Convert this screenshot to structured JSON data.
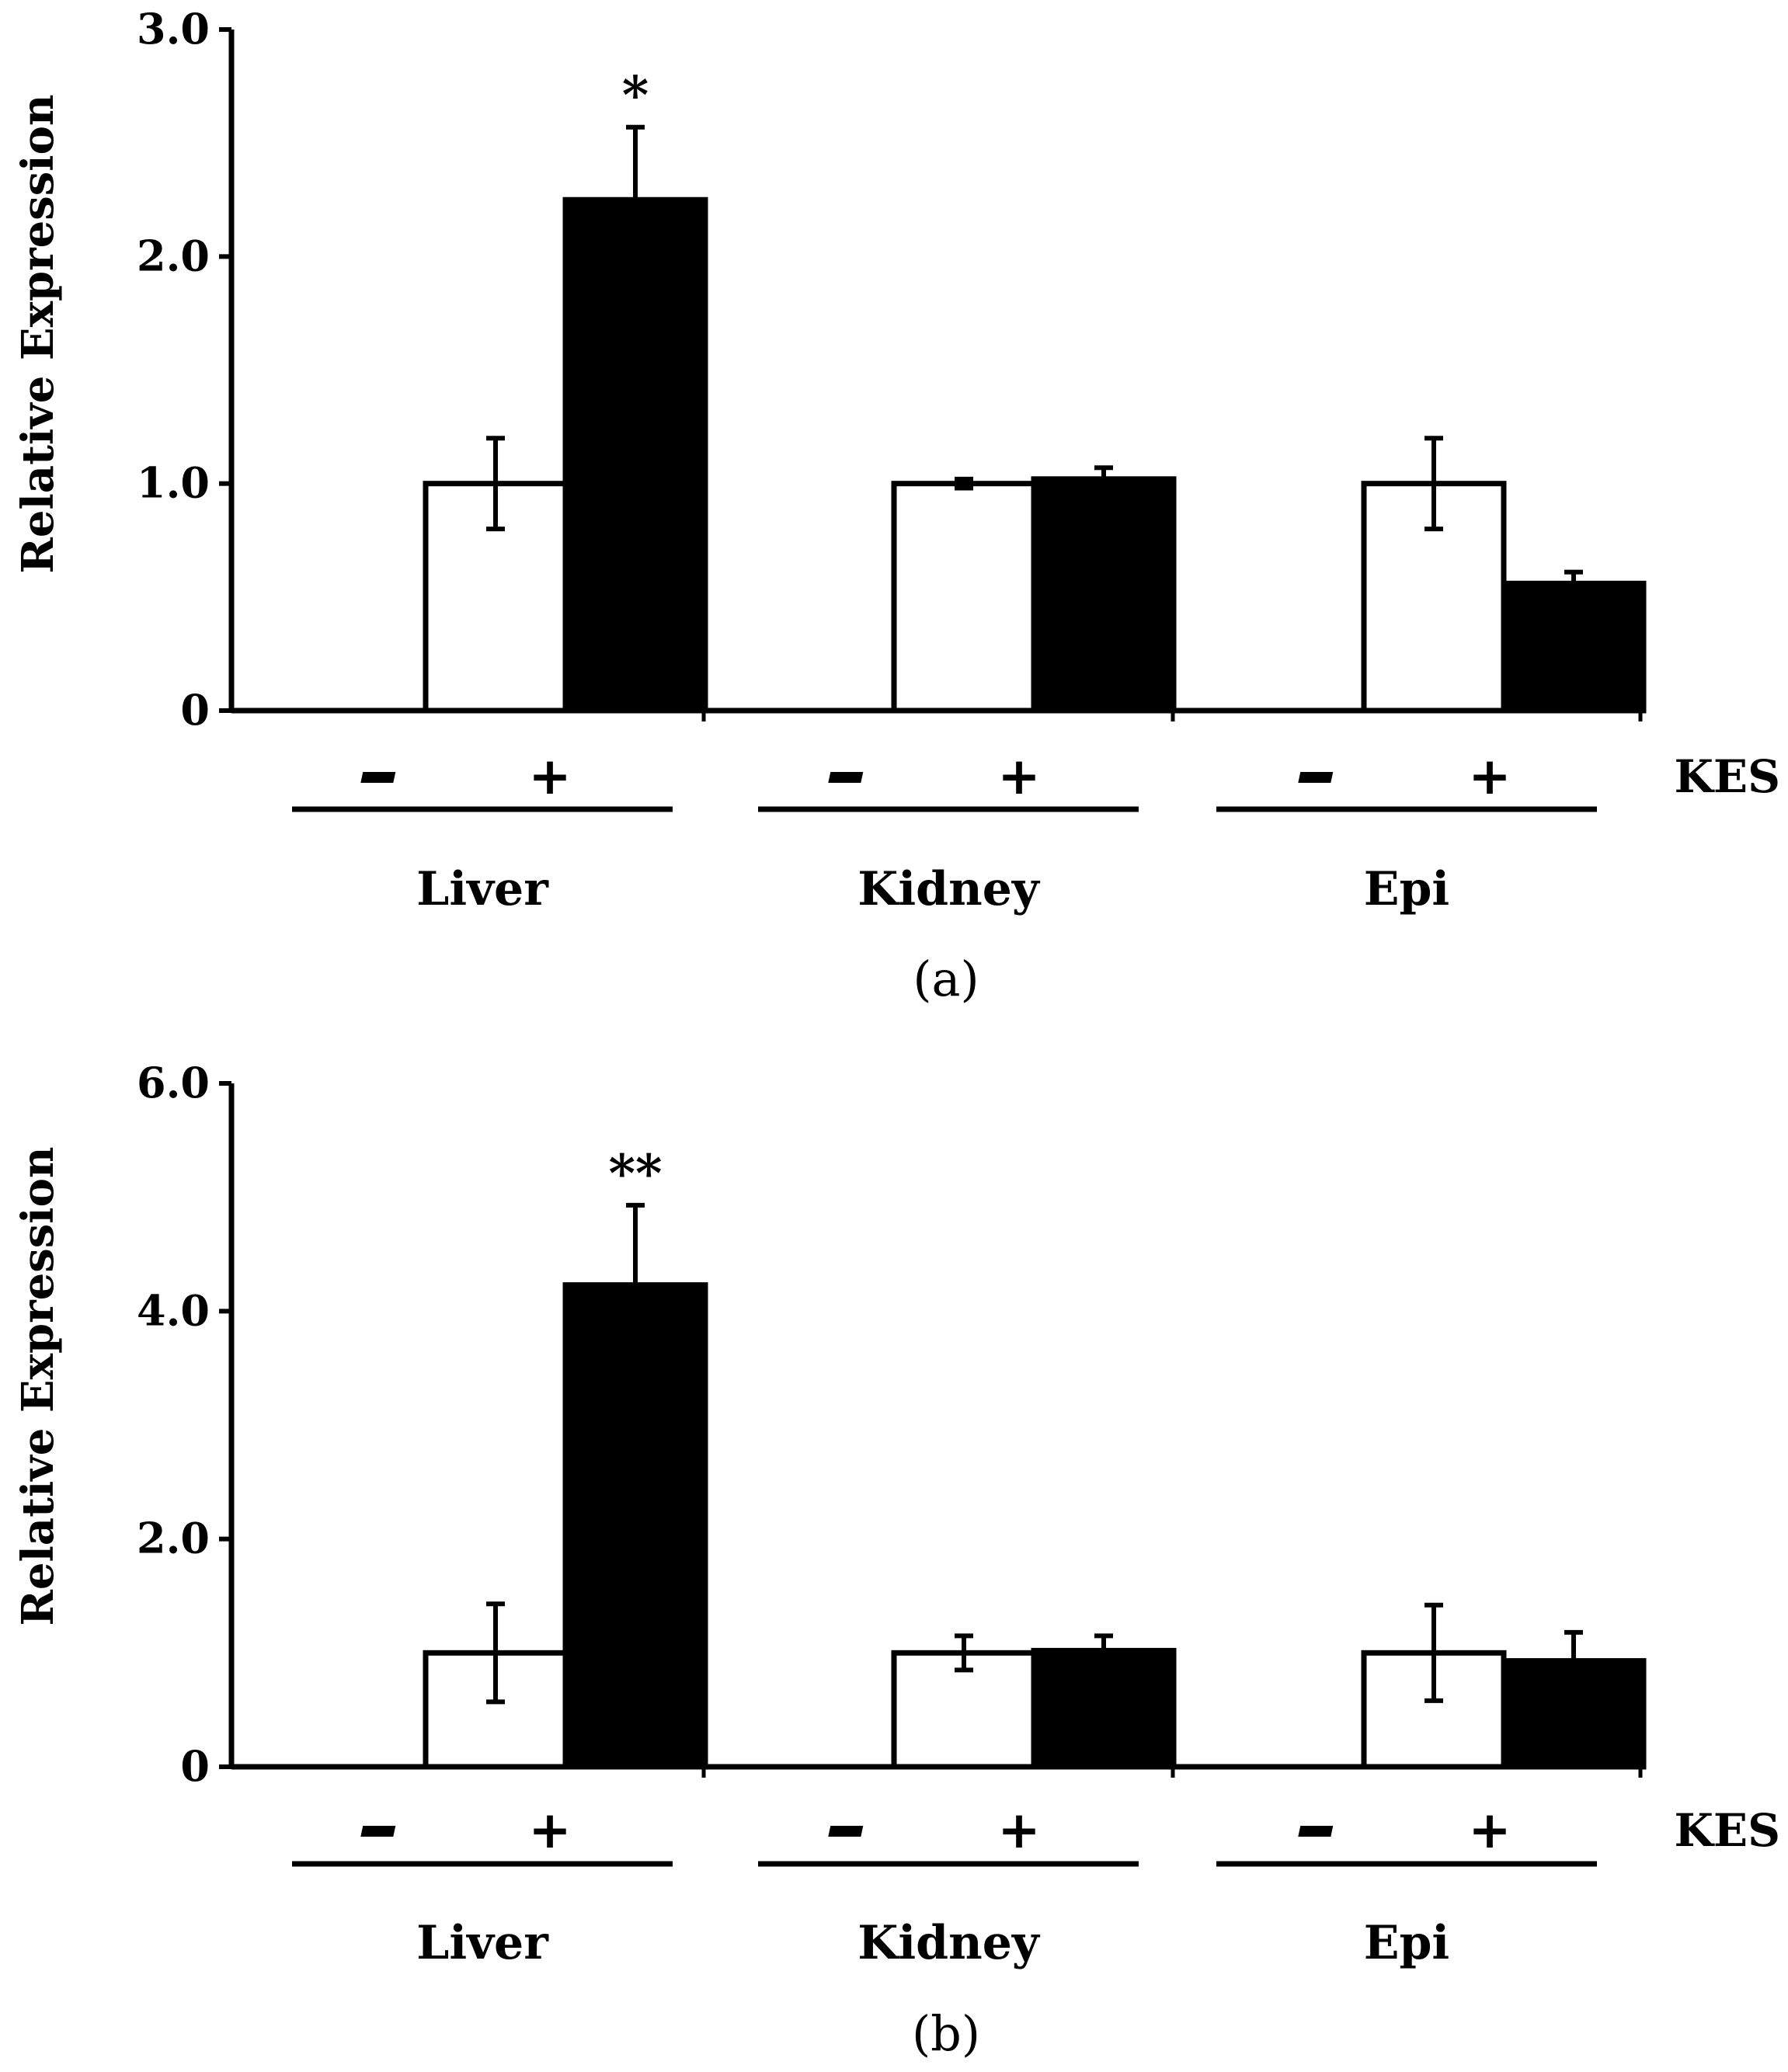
{
  "chart_data": [
    {
      "type": "bar",
      "panel_label": "(a)",
      "ylabel": "Relative Expression",
      "ylim": [
        0,
        3.0
      ],
      "yticks": [
        0,
        1.0,
        2.0,
        3.0
      ],
      "ytick_labels": [
        "0",
        "1.0",
        "2.0",
        "3.0"
      ],
      "treatment_label": "KES",
      "groups": [
        "Liver",
        "Kidney",
        "Epi"
      ],
      "conditions": [
        "-",
        "+"
      ],
      "series": [
        {
          "name": "-",
          "fill": "#ffffff",
          "values": [
            1.0,
            1.0,
            1.0
          ],
          "errors": [
            0.2,
            0.02,
            0.2
          ]
        },
        {
          "name": "+",
          "fill": "#000000",
          "values": [
            2.25,
            1.02,
            0.56
          ],
          "errors": [
            0.32,
            0.05,
            0.05
          ]
        }
      ],
      "annotations": [
        {
          "group": 0,
          "series": 1,
          "text": "*"
        }
      ]
    },
    {
      "type": "bar",
      "panel_label": "(b)",
      "ylabel": "Relative Expression",
      "ylim": [
        0,
        6.0
      ],
      "yticks": [
        0,
        2.0,
        4.0,
        6.0
      ],
      "ytick_labels": [
        "0",
        "2.0",
        "4.0",
        "6.0"
      ],
      "treatment_label": "KES",
      "groups": [
        "Liver",
        "Kidney",
        "Epi"
      ],
      "conditions": [
        "-",
        "+"
      ],
      "series": [
        {
          "name": "-",
          "fill": "#ffffff",
          "values": [
            1.0,
            1.0,
            1.0
          ],
          "errors": [
            0.43,
            0.15,
            0.42
          ]
        },
        {
          "name": "+",
          "fill": "#000000",
          "values": [
            4.23,
            1.02,
            0.93
          ],
          "errors": [
            0.7,
            0.13,
            0.25
          ]
        }
      ],
      "annotations": [
        {
          "group": 0,
          "series": 1,
          "text": "**"
        }
      ]
    }
  ],
  "colors": {
    "axis": "#000000",
    "background": "#ffffff"
  }
}
